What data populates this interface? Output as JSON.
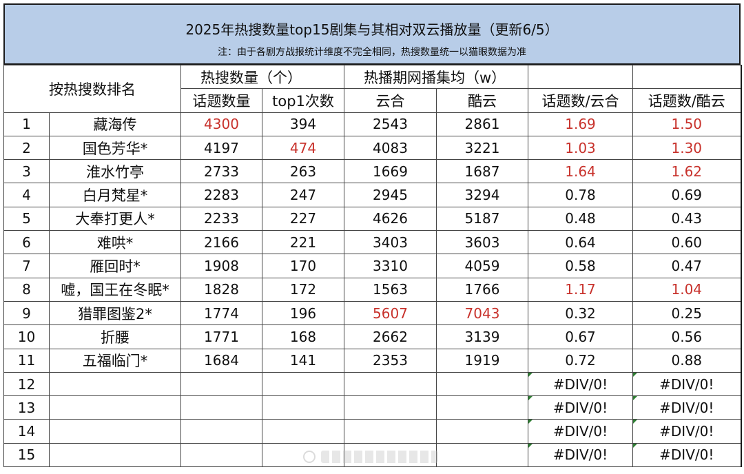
{
  "title": "2025年热搜数量top15剧集与其相对双云播放量（更新6/5）",
  "note": "注：由于各剧方战报统计维度不完全相同，热搜数量统一以猫眼数据为准",
  "headers": {
    "rank": "按热搜数排名",
    "hot_group": "热搜数量（个）",
    "play_group": "热播期网播集均（w）",
    "topic_count": "话题数量",
    "top1_count": "top1次数",
    "yunhe": "云合",
    "kuyun": "酷云",
    "ratio_yunhe": "话题数/云合",
    "ratio_kuyun": "话题数/酷云"
  },
  "rows": [
    {
      "rank": "1",
      "name": "藏海传",
      "topics": "4300",
      "top1": "394",
      "yunhe": "2543",
      "kuyun": "2861",
      "ry": "1.69",
      "rk": "1.50"
    },
    {
      "rank": "2",
      "name": "国色芳华*",
      "topics": "4197",
      "top1": "474",
      "yunhe": "4083",
      "kuyun": "3221",
      "ry": "1.03",
      "rk": "1.30"
    },
    {
      "rank": "3",
      "name": "淮水竹亭",
      "topics": "2733",
      "top1": "263",
      "yunhe": "1669",
      "kuyun": "1687",
      "ry": "1.64",
      "rk": "1.62"
    },
    {
      "rank": "4",
      "name": "白月梵星*",
      "topics": "2283",
      "top1": "247",
      "yunhe": "2945",
      "kuyun": "3294",
      "ry": "0.78",
      "rk": "0.69"
    },
    {
      "rank": "5",
      "name": "大奉打更人*",
      "topics": "2233",
      "top1": "227",
      "yunhe": "4626",
      "kuyun": "5187",
      "ry": "0.48",
      "rk": "0.43"
    },
    {
      "rank": "6",
      "name": "难哄*",
      "topics": "2166",
      "top1": "221",
      "yunhe": "3403",
      "kuyun": "3603",
      "ry": "0.64",
      "rk": "0.60"
    },
    {
      "rank": "7",
      "name": "雁回时*",
      "topics": "1908",
      "top1": "170",
      "yunhe": "3310",
      "kuyun": "4059",
      "ry": "0.58",
      "rk": "0.47"
    },
    {
      "rank": "8",
      "name": "嘘，国王在冬眠*",
      "topics": "1828",
      "top1": "172",
      "yunhe": "1563",
      "kuyun": "1766",
      "ry": "1.17",
      "rk": "1.04"
    },
    {
      "rank": "9",
      "name": "猎罪图鉴2*",
      "topics": "1774",
      "top1": "196",
      "yunhe": "5607",
      "kuyun": "7043",
      "ry": "0.32",
      "rk": "0.25"
    },
    {
      "rank": "10",
      "name": "折腰",
      "topics": "1771",
      "top1": "168",
      "yunhe": "2662",
      "kuyun": "3139",
      "ry": "0.67",
      "rk": "0.56"
    },
    {
      "rank": "11",
      "name": "五福临门*",
      "topics": "1684",
      "top1": "141",
      "yunhe": "2353",
      "kuyun": "1919",
      "ry": "0.72",
      "rk": "0.88"
    },
    {
      "rank": "12",
      "name": "",
      "topics": "",
      "top1": "",
      "yunhe": "",
      "kuyun": "",
      "ry": "#DIV/0!",
      "rk": "#DIV/0!"
    },
    {
      "rank": "13",
      "name": "",
      "topics": "",
      "top1": "",
      "yunhe": "",
      "kuyun": "",
      "ry": "#DIV/0!",
      "rk": "#DIV/0!"
    },
    {
      "rank": "14",
      "name": "",
      "topics": "",
      "top1": "",
      "yunhe": "",
      "kuyun": "",
      "ry": "#DIV/0!",
      "rk": "#DIV/0!"
    },
    {
      "rank": "15",
      "name": "",
      "topics": "",
      "top1": "",
      "yunhe": "",
      "kuyun": "",
      "ry": "#DIV/0!",
      "rk": "#DIV/0!"
    }
  ],
  "colors": {
    "header_bg": "#b8cde8",
    "highlight_red": "#c8322c",
    "error_triangle": "#2e7d32"
  }
}
